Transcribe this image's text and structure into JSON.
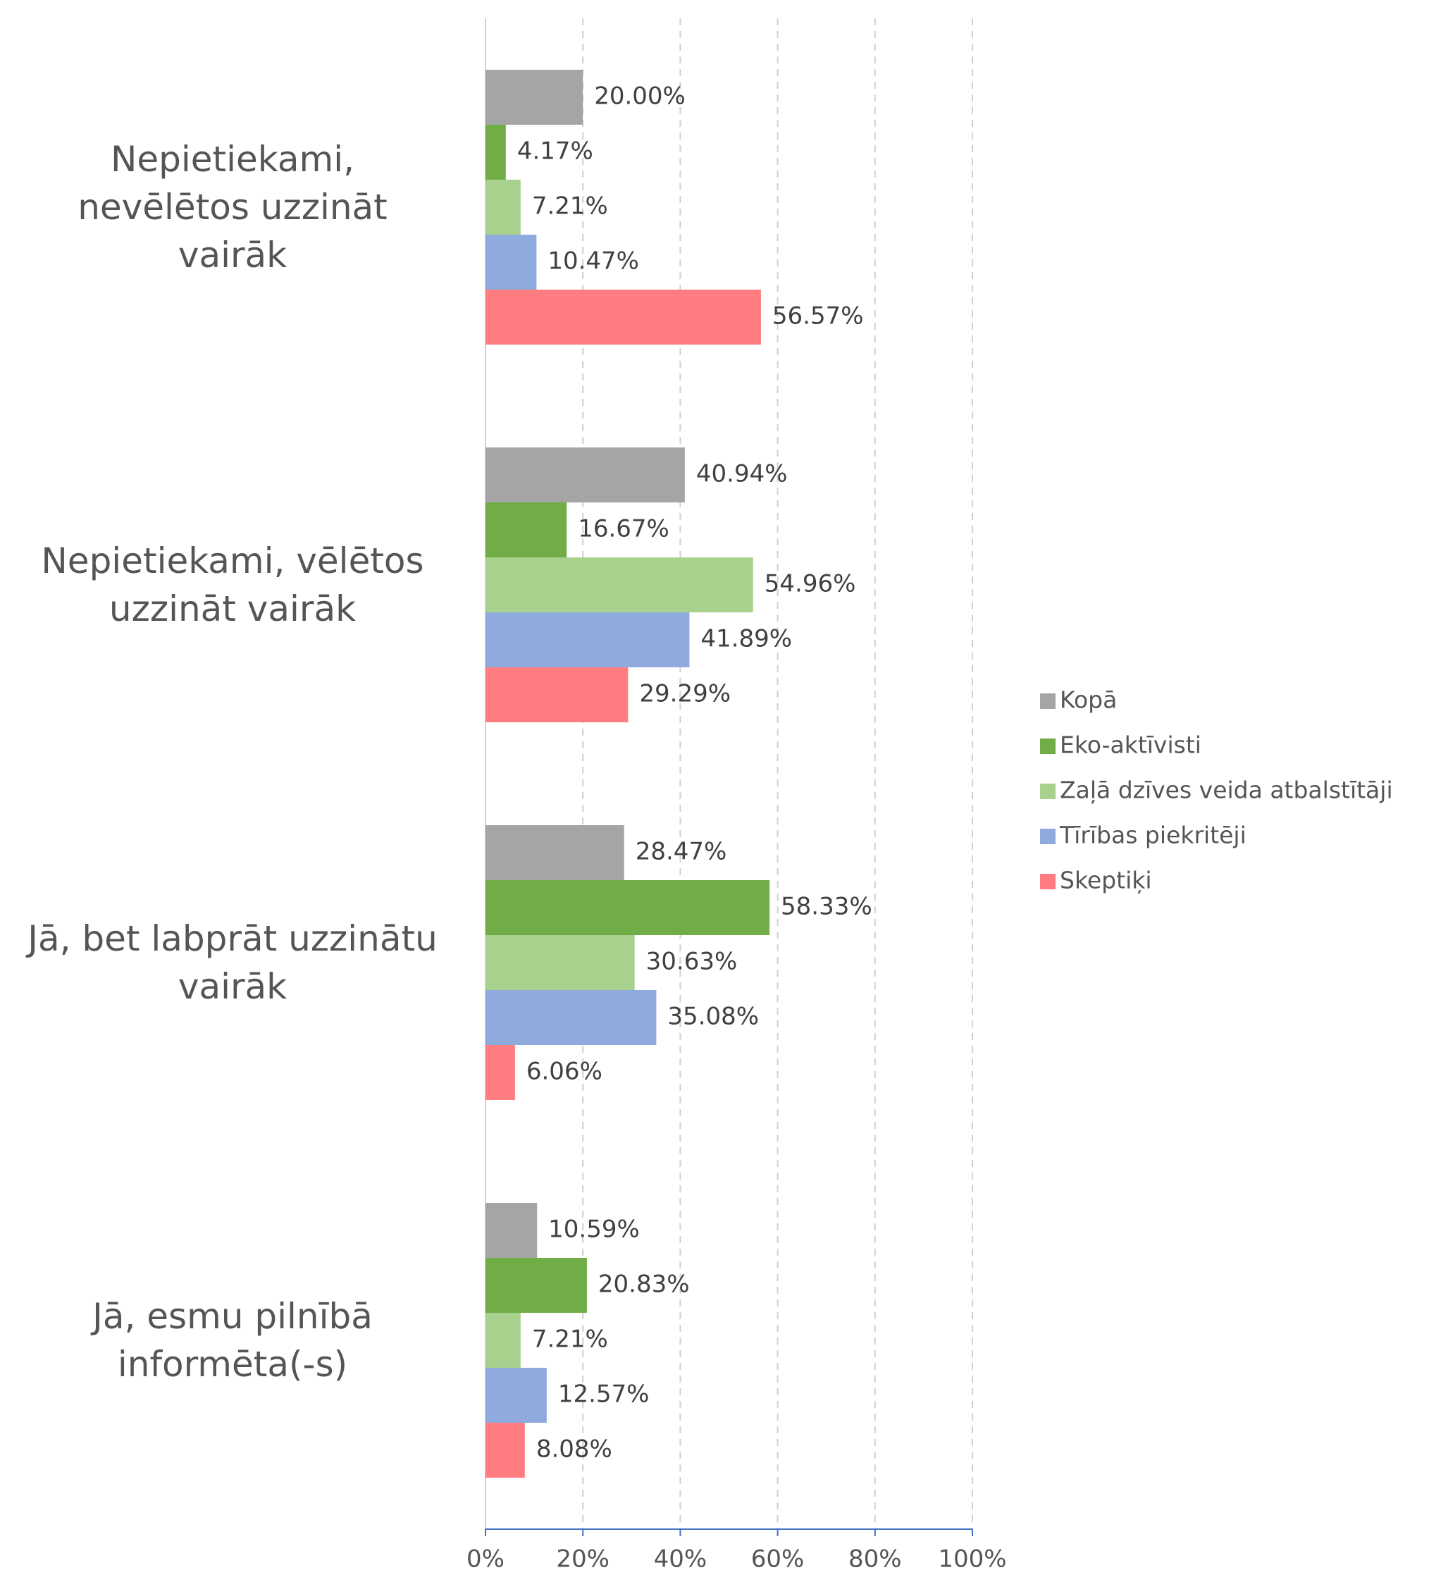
{
  "chart_data": {
    "type": "bar",
    "orientation": "horizontal",
    "categories": [
      "Nepietiekami, nevēlētos uzzināt vairāk",
      "Nepietiekami, vēlētos uzzināt vairāk",
      "Jā, bet labprāt uzzinātu vairāk",
      "Jā, esmu pilnībā informēta(-s)"
    ],
    "series": [
      {
        "name": "Kopā",
        "color": "#a5a5a5",
        "values": [
          20.0,
          40.94,
          28.47,
          10.59
        ],
        "value_labels": [
          "20.00%",
          "40.94%",
          "28.47%",
          "10.59%"
        ]
      },
      {
        "name": "Eko-aktīvisti",
        "color": "#70ad47",
        "values": [
          4.17,
          16.67,
          58.33,
          20.83
        ],
        "value_labels": [
          "4.17%",
          "16.67%",
          "58.33%",
          "20.83%"
        ]
      },
      {
        "name": "Zaļā dzīves veida atbalstītāji",
        "color": "#a9d18e",
        "values": [
          7.21,
          54.96,
          30.63,
          7.21
        ],
        "value_labels": [
          "7.21%",
          "54.96%",
          "30.63%",
          "7.21%"
        ]
      },
      {
        "name": "Tīrības piekritēji",
        "color": "#8faadc",
        "values": [
          10.47,
          41.89,
          35.08,
          12.57
        ],
        "value_labels": [
          "10.47%",
          "41.89%",
          "35.08%",
          "12.57%"
        ]
      },
      {
        "name": "Skeptiķi",
        "color": "#ff7c80",
        "values": [
          56.57,
          29.29,
          6.06,
          8.08
        ],
        "value_labels": [
          "56.57%",
          "29.29%",
          "6.06%",
          "8.08%"
        ]
      }
    ],
    "xlim": [
      0,
      100
    ],
    "xticks": [
      {
        "value": 0,
        "label": "0%"
      },
      {
        "value": 20,
        "label": "20%"
      },
      {
        "value": 40,
        "label": "40%"
      },
      {
        "value": 60,
        "label": "60%"
      },
      {
        "value": 80,
        "label": "80%"
      },
      {
        "value": 100,
        "label": "100%"
      }
    ],
    "grid": true,
    "legend": "right"
  }
}
